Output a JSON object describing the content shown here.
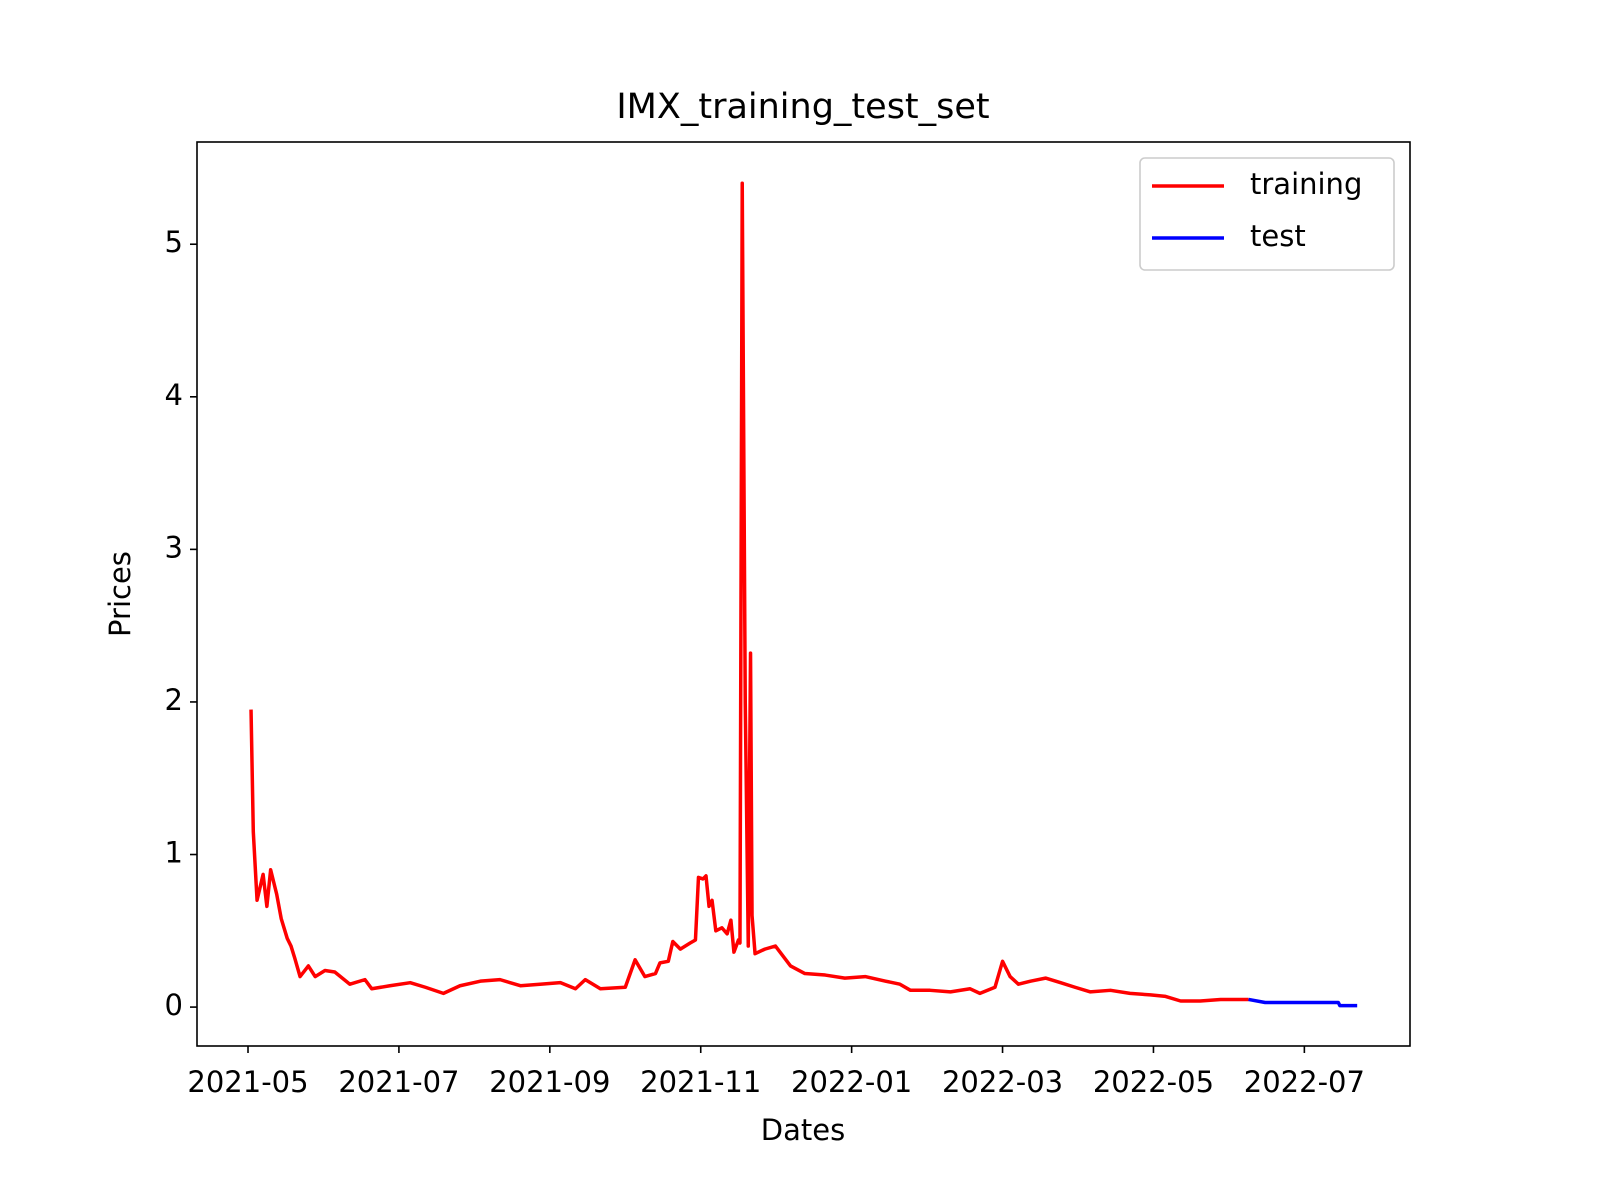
{
  "chart_data": {
    "type": "line",
    "title": "IMX_training_test_set",
    "x_label": "Dates",
    "y_label": "Prices",
    "legend": "upper right",
    "grid": false,
    "xlim": [
      -0.676,
      15.4
    ],
    "ylim": [
      -0.255,
      5.67
    ],
    "xticks": [
      {
        "value": 0,
        "label": "2021-05"
      },
      {
        "value": 2,
        "label": "2021-07"
      },
      {
        "value": 4,
        "label": "2021-09"
      },
      {
        "value": 6,
        "label": "2021-11"
      },
      {
        "value": 8,
        "label": "2022-01"
      },
      {
        "value": 10,
        "label": "2022-03"
      },
      {
        "value": 12,
        "label": "2022-05"
      },
      {
        "value": 14,
        "label": "2022-07"
      }
    ],
    "yticks": [
      0,
      1,
      2,
      3,
      4,
      5
    ],
    "series": [
      {
        "name": "training",
        "color": "#ff0000",
        "x": [
          0.04,
          0.07,
          0.12,
          0.2,
          0.25,
          0.3,
          0.38,
          0.44,
          0.52,
          0.57,
          0.62,
          0.69,
          0.8,
          0.89,
          1.02,
          1.15,
          1.35,
          1.55,
          1.64,
          1.88,
          2.15,
          2.35,
          2.59,
          2.81,
          3.08,
          3.34,
          3.61,
          3.87,
          4.14,
          4.34,
          4.47,
          4.67,
          5.0,
          5.13,
          5.26,
          5.4,
          5.46,
          5.57,
          5.63,
          5.73,
          5.86,
          5.93,
          5.97,
          6.03,
          6.07,
          6.11,
          6.15,
          6.2,
          6.28,
          6.35,
          6.4,
          6.44,
          6.5,
          6.52,
          6.55,
          6.59,
          6.63,
          6.66,
          6.68,
          6.72,
          6.85,
          6.99,
          7.19,
          7.38,
          7.65,
          7.91,
          8.18,
          8.45,
          8.64,
          8.78,
          9.04,
          9.31,
          9.57,
          9.7,
          9.9,
          10.0,
          10.1,
          10.21,
          10.37,
          10.57,
          10.77,
          10.96,
          11.16,
          11.43,
          11.69,
          11.96,
          12.16,
          12.36,
          12.62,
          12.89,
          13.26
        ],
        "values": [
          1.95,
          1.15,
          0.7,
          0.87,
          0.66,
          0.9,
          0.74,
          0.58,
          0.45,
          0.4,
          0.32,
          0.2,
          0.27,
          0.2,
          0.24,
          0.23,
          0.15,
          0.18,
          0.12,
          0.14,
          0.16,
          0.13,
          0.09,
          0.14,
          0.17,
          0.18,
          0.14,
          0.15,
          0.16,
          0.12,
          0.18,
          0.12,
          0.13,
          0.31,
          0.2,
          0.22,
          0.29,
          0.3,
          0.43,
          0.38,
          0.42,
          0.44,
          0.85,
          0.84,
          0.86,
          0.66,
          0.7,
          0.5,
          0.52,
          0.48,
          0.57,
          0.36,
          0.44,
          0.42,
          5.4,
          2.0,
          0.4,
          2.32,
          0.6,
          0.35,
          0.38,
          0.4,
          0.27,
          0.22,
          0.21,
          0.19,
          0.2,
          0.17,
          0.15,
          0.11,
          0.11,
          0.1,
          0.12,
          0.09,
          0.13,
          0.3,
          0.2,
          0.15,
          0.17,
          0.19,
          0.16,
          0.13,
          0.1,
          0.11,
          0.09,
          0.08,
          0.07,
          0.04,
          0.04,
          0.05,
          0.05
        ]
      },
      {
        "name": "test",
        "color": "#0000ff",
        "x": [
          13.26,
          13.48,
          13.81,
          14.08,
          14.21,
          14.45,
          14.47,
          14.7
        ],
        "values": [
          0.05,
          0.03,
          0.03,
          0.03,
          0.03,
          0.03,
          0.01,
          0.01
        ]
      }
    ]
  }
}
